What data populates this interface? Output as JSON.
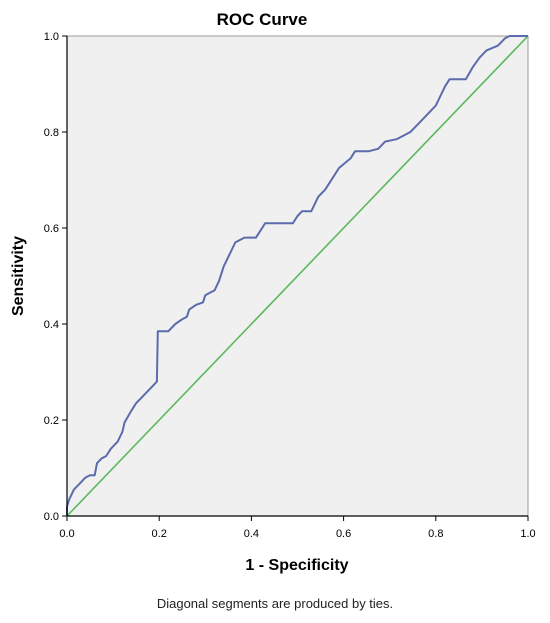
{
  "chart_data": {
    "type": "line",
    "title": "ROC Curve",
    "xlabel": "1 - Specificity",
    "ylabel": "Sensitivity",
    "xlim": [
      0,
      1
    ],
    "ylim": [
      0,
      1
    ],
    "x_ticks": [
      "0.0",
      "0.2",
      "0.4",
      "0.6",
      "0.8",
      "1.0"
    ],
    "y_ticks": [
      "0.0",
      "0.2",
      "0.4",
      "0.6",
      "0.8",
      "1.0"
    ],
    "grid": false,
    "legend": "none",
    "background_color": "#f0f0f0",
    "series": [
      {
        "kind": "roc",
        "color": "#5b6bab",
        "points": [
          [
            0.0,
            0.0
          ],
          [
            0.0,
            0.02
          ],
          [
            0.005,
            0.035
          ],
          [
            0.01,
            0.045
          ],
          [
            0.015,
            0.055
          ],
          [
            0.02,
            0.06
          ],
          [
            0.03,
            0.07
          ],
          [
            0.04,
            0.08
          ],
          [
            0.05,
            0.085
          ],
          [
            0.06,
            0.085
          ],
          [
            0.065,
            0.11
          ],
          [
            0.075,
            0.12
          ],
          [
            0.085,
            0.125
          ],
          [
            0.095,
            0.14
          ],
          [
            0.11,
            0.155
          ],
          [
            0.12,
            0.175
          ],
          [
            0.125,
            0.195
          ],
          [
            0.14,
            0.22
          ],
          [
            0.15,
            0.235
          ],
          [
            0.16,
            0.245
          ],
          [
            0.175,
            0.26
          ],
          [
            0.185,
            0.27
          ],
          [
            0.195,
            0.28
          ],
          [
            0.197,
            0.385
          ],
          [
            0.22,
            0.385
          ],
          [
            0.235,
            0.4
          ],
          [
            0.25,
            0.41
          ],
          [
            0.26,
            0.415
          ],
          [
            0.265,
            0.43
          ],
          [
            0.28,
            0.44
          ],
          [
            0.295,
            0.445
          ],
          [
            0.3,
            0.46
          ],
          [
            0.31,
            0.465
          ],
          [
            0.32,
            0.47
          ],
          [
            0.33,
            0.49
          ],
          [
            0.34,
            0.52
          ],
          [
            0.355,
            0.55
          ],
          [
            0.365,
            0.57
          ],
          [
            0.385,
            0.58
          ],
          [
            0.41,
            0.58
          ],
          [
            0.43,
            0.61
          ],
          [
            0.49,
            0.61
          ],
          [
            0.5,
            0.625
          ],
          [
            0.51,
            0.635
          ],
          [
            0.53,
            0.635
          ],
          [
            0.545,
            0.665
          ],
          [
            0.56,
            0.68
          ],
          [
            0.57,
            0.695
          ],
          [
            0.59,
            0.725
          ],
          [
            0.615,
            0.745
          ],
          [
            0.625,
            0.76
          ],
          [
            0.655,
            0.76
          ],
          [
            0.675,
            0.765
          ],
          [
            0.69,
            0.78
          ],
          [
            0.715,
            0.785
          ],
          [
            0.745,
            0.8
          ],
          [
            0.765,
            0.82
          ],
          [
            0.78,
            0.835
          ],
          [
            0.8,
            0.855
          ],
          [
            0.81,
            0.875
          ],
          [
            0.82,
            0.895
          ],
          [
            0.83,
            0.91
          ],
          [
            0.865,
            0.91
          ],
          [
            0.88,
            0.935
          ],
          [
            0.895,
            0.955
          ],
          [
            0.91,
            0.97
          ],
          [
            0.935,
            0.98
          ],
          [
            0.95,
            0.995
          ],
          [
            0.96,
            1.0
          ],
          [
            1.0,
            1.0
          ]
        ]
      },
      {
        "kind": "reference",
        "color": "#5cb85c",
        "points": [
          [
            0,
            0
          ],
          [
            1,
            1
          ]
        ]
      }
    ]
  },
  "footnote": "Diagonal segments are produced by ties."
}
